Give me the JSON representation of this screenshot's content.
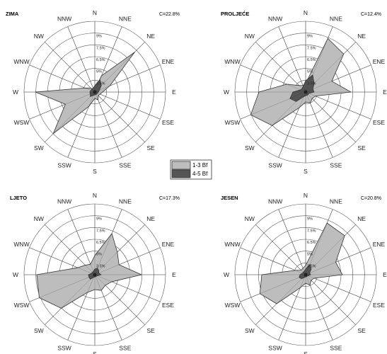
{
  "chart_data": [
    {
      "type": "radar",
      "title": "ZIMA",
      "calm": "C=22.8%",
      "directions": [
        "N",
        "NNE",
        "NE",
        "ENE",
        "E",
        "ESE",
        "SE",
        "SSE",
        "S",
        "SSW",
        "SW",
        "WSW",
        "W",
        "WNW",
        "NW",
        "NNW"
      ],
      "ring_labels": [
        "3.5%",
        "5%",
        "6.5%",
        "7.5%",
        "9%"
      ],
      "series": [
        {
          "name": "1-3 Bf",
          "values": [
            0.4,
            2.5,
            8.0,
            2.3,
            1.1,
            0.8,
            0.7,
            1.2,
            0.9,
            2.2,
            8.3,
            4.5,
            8.4,
            1.5,
            0.8,
            0.4
          ]
        },
        {
          "name": "4-5 Bf",
          "values": [
            0.9,
            1.9,
            1.3,
            0.7,
            0.5,
            0.4,
            0.4,
            0.4,
            0.4,
            0.5,
            0.9,
            0.7,
            0.7,
            0.6,
            0.6,
            0.6
          ]
        }
      ]
    },
    {
      "type": "radar",
      "title": "PROLJEĆE",
      "calm": "C=12.4%",
      "directions": [
        "N",
        "NNE",
        "NE",
        "ENE",
        "E",
        "ESE",
        "SE",
        "SSE",
        "S",
        "SSW",
        "SW",
        "WSW",
        "W",
        "WNW",
        "NW",
        "NNW"
      ],
      "ring_labels": [
        "3.5%",
        "5%",
        "6.5%",
        "7.5%",
        "9%"
      ],
      "series": [
        {
          "name": "1-3 Bf",
          "values": [
            1.2,
            8.2,
            7.6,
            4.0,
            6.4,
            1.5,
            1.3,
            1.7,
            1.4,
            2.4,
            6.7,
            8.4,
            6.6,
            2.9,
            1.3,
            1.0
          ]
        },
        {
          "name": "4-5 Bf",
          "values": [
            1.6,
            2.6,
            1.7,
            1.1,
            1.2,
            0.5,
            0.5,
            0.5,
            0.5,
            0.7,
            1.9,
            2.4,
            1.8,
            0.8,
            0.7,
            0.9
          ]
        }
      ]
    },
    {
      "type": "radar",
      "title": "LJETO",
      "calm": "C=17.3%",
      "directions": [
        "N",
        "NNE",
        "NE",
        "ENE",
        "E",
        "ESE",
        "SE",
        "SSE",
        "S",
        "SSW",
        "SW",
        "WSW",
        "W",
        "WNW",
        "NW",
        "NNW"
      ],
      "ring_labels": [
        "3.5%",
        "5%",
        "6.5%",
        "7.5%",
        "9%"
      ],
      "series": [
        {
          "name": "1-3 Bf",
          "values": [
            2.7,
            6.3,
            4.5,
            3.7,
            6.6,
            2.6,
            2.1,
            2.4,
            2.1,
            2.7,
            6.7,
            8.5,
            8.2,
            2.6,
            1.9,
            1.6
          ]
        },
        {
          "name": "4-5 Bf",
          "values": [
            0.8,
            1.0,
            0.8,
            0.6,
            0.9,
            0.4,
            0.3,
            0.3,
            0.3,
            0.4,
            0.9,
            0.9,
            0.9,
            0.5,
            0.5,
            0.5
          ]
        }
      ]
    },
    {
      "type": "radar",
      "title": "JESEN",
      "calm": "C=20.8%",
      "directions": [
        "N",
        "NNE",
        "NE",
        "ENE",
        "E",
        "ESE",
        "SE",
        "SSE",
        "S",
        "SSW",
        "SW",
        "WSW",
        "W",
        "WNW",
        "NW",
        "NNW"
      ],
      "ring_labels": [
        "3.5%",
        "5%",
        "6.5%",
        "7.5%",
        "9%"
      ],
      "series": [
        {
          "name": "1-3 Bf",
          "values": [
            1.3,
            7.9,
            7.8,
            4.6,
            5.2,
            1.3,
            1.1,
            1.6,
            1.2,
            2.0,
            5.8,
            7.0,
            6.2,
            1.6,
            0.9,
            1.0
          ]
        },
        {
          "name": "4-5 Bf",
          "values": [
            0.8,
            1.6,
            1.1,
            0.6,
            0.7,
            0.4,
            0.3,
            0.3,
            0.3,
            0.4,
            0.8,
            1.0,
            0.8,
            0.5,
            0.5,
            0.5
          ]
        }
      ]
    }
  ],
  "legend": {
    "items": [
      {
        "label": "1-3 Bf",
        "color": "#bdbdbd"
      },
      {
        "label": "4-5 Bf",
        "color": "#555555"
      }
    ]
  },
  "colors": {
    "light_fill": "#bdbdbd",
    "dark_fill": "#555555",
    "outline": "#333333"
  }
}
